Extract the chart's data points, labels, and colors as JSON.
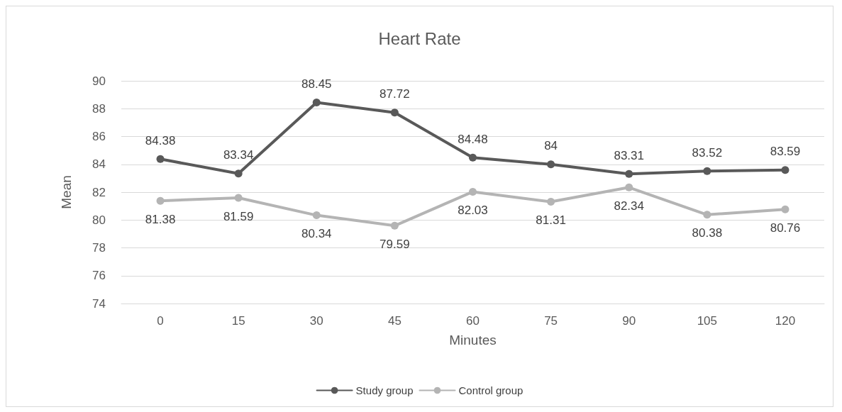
{
  "chart_data": {
    "type": "line",
    "title": "Heart Rate",
    "xlabel": "Minutes",
    "ylabel": "Mean",
    "categories": [
      "0",
      "15",
      "30",
      "45",
      "60",
      "75",
      "90",
      "105",
      "120"
    ],
    "series": [
      {
        "name": "Study group",
        "color": "#595959",
        "values": [
          84.38,
          83.34,
          88.45,
          87.72,
          84.48,
          84,
          83.31,
          83.52,
          83.59
        ]
      },
      {
        "name": "Control group",
        "color": "#b4b4b4",
        "values": [
          81.38,
          81.59,
          80.34,
          79.59,
          82.03,
          81.31,
          82.34,
          80.38,
          80.76
        ]
      }
    ],
    "ylim": [
      74,
      90
    ],
    "yticks": [
      74,
      76,
      78,
      80,
      82,
      84,
      86,
      88,
      90
    ],
    "grid": "y",
    "legend": "bottom",
    "marker": "circle",
    "line_style": "solid",
    "data_labels": true
  }
}
